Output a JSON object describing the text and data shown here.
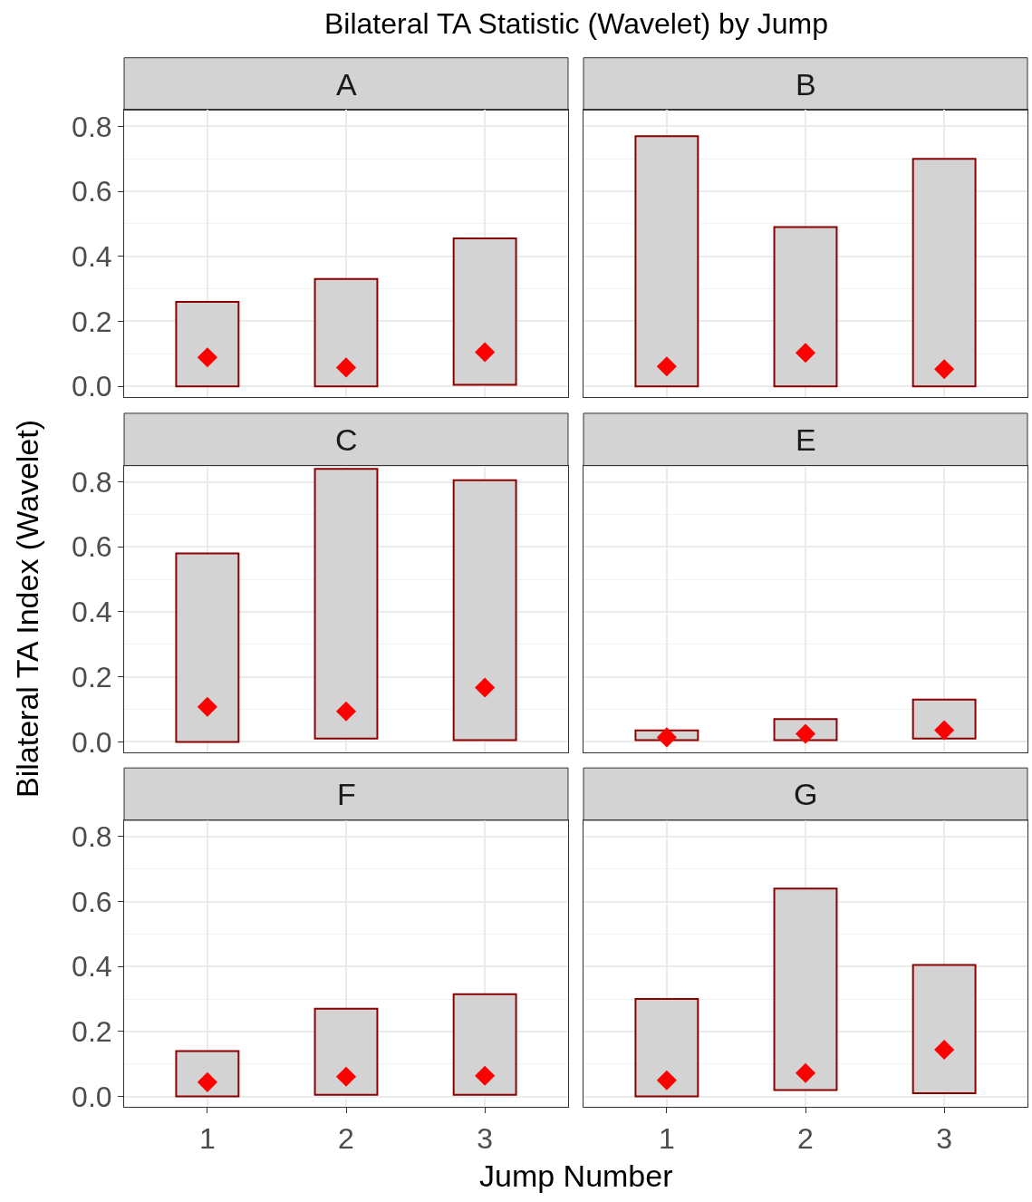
{
  "chart_data": [
    {
      "type": "bar",
      "title": "A",
      "annotations": [
        "Bilateral TA Statistic (Wavelet) by Jump"
      ],
      "categories": [
        "1",
        "2",
        "3"
      ],
      "series": [
        {
          "color": "#d3d3d3",
          "base": [
            0.0,
            0.0,
            0.005
          ],
          "values": [
            0.26,
            0.33,
            0.45
          ]
        },
        {
          "type": "scatter",
          "color": "#ff0000",
          "values": [
            0.089,
            0.058,
            0.105
          ]
        }
      ],
      "ylim": [
        -0.033,
        0.85
      ],
      "yticks": [
        {
          "value": 0,
          "label": "0.0"
        },
        {
          "value": 0.2,
          "label": "0.2"
        },
        {
          "value": 0.4,
          "label": "0.4"
        },
        {
          "value": 0.6,
          "label": "0.6"
        },
        {
          "value": 0.8,
          "label": "0.8"
        }
      ],
      "grid": true,
      "marker": "diamond",
      "tick_labels": "y"
    },
    {
      "type": "bar",
      "title": "B",
      "categories": [
        "1",
        "2",
        "3"
      ],
      "series": [
        {
          "color": "#d3d3d3",
          "base": [
            0.0,
            0.0,
            0.0
          ],
          "values": [
            0.77,
            0.49,
            0.7
          ]
        },
        {
          "type": "scatter",
          "color": "#ff0000",
          "values": [
            0.061,
            0.103,
            0.053
          ]
        }
      ],
      "ylim": [
        -0.033,
        0.85
      ],
      "yticks": [
        0,
        0.2,
        0.4,
        0.6,
        0.8
      ],
      "grid": true,
      "marker": "diamond",
      "tick_labels": false
    },
    {
      "type": "bar",
      "title": "C",
      "ylabel": "Bilateral TA Index (Wavelet)",
      "categories": [
        "1",
        "2",
        "3"
      ],
      "series": [
        {
          "color": "#d3d3d3",
          "base": [
            0.0,
            0.01,
            0.005
          ],
          "values": [
            0.58,
            0.83,
            0.8
          ]
        },
        {
          "type": "scatter",
          "color": "#ff0000",
          "values": [
            0.108,
            0.094,
            0.167
          ]
        }
      ],
      "ylim": [
        -0.033,
        0.85
      ],
      "yticks": [
        {
          "value": 0,
          "label": "0.0"
        },
        {
          "value": 0.2,
          "label": "0.2"
        },
        {
          "value": 0.4,
          "label": "0.4"
        },
        {
          "value": 0.6,
          "label": "0.6"
        },
        {
          "value": 0.8,
          "label": "0.8"
        }
      ],
      "grid": true,
      "marker": "diamond",
      "tick_labels": "y"
    },
    {
      "type": "bar",
      "title": "E",
      "categories": [
        "1",
        "2",
        "3"
      ],
      "series": [
        {
          "color": "#d3d3d3",
          "base": [
            0.005,
            0.005,
            0.01
          ],
          "values": [
            0.03,
            0.065,
            0.12
          ]
        },
        {
          "type": "scatter",
          "color": "#ff0000",
          "values": [
            0.014,
            0.025,
            0.036
          ]
        }
      ],
      "ylim": [
        -0.033,
        0.85
      ],
      "yticks": [
        0,
        0.2,
        0.4,
        0.6,
        0.8
      ],
      "grid": true,
      "marker": "diamond",
      "tick_labels": false
    },
    {
      "type": "bar",
      "title": "F",
      "xlabel": "Jump Number",
      "categories": [
        "1",
        "2",
        "3"
      ],
      "series": [
        {
          "color": "#d3d3d3",
          "base": [
            0.0,
            0.005,
            0.005
          ],
          "values": [
            0.14,
            0.265,
            0.31
          ]
        },
        {
          "type": "scatter",
          "color": "#ff0000",
          "values": [
            0.044,
            0.061,
            0.064
          ]
        }
      ],
      "ylim": [
        -0.033,
        0.85
      ],
      "yticks": [
        {
          "value": 0,
          "label": "0.0"
        },
        {
          "value": 0.2,
          "label": "0.2"
        },
        {
          "value": 0.4,
          "label": "0.4"
        },
        {
          "value": 0.6,
          "label": "0.6"
        },
        {
          "value": 0.8,
          "label": "0.8"
        }
      ],
      "grid": true,
      "marker": "diamond"
    },
    {
      "type": "bar",
      "title": "G",
      "categories": [
        "1",
        "2",
        "3"
      ],
      "series": [
        {
          "color": "#d3d3d3",
          "base": [
            0.0,
            0.02,
            0.01
          ],
          "values": [
            0.3,
            0.62,
            0.395
          ]
        },
        {
          "type": "scatter",
          "color": "#ff0000",
          "values": [
            0.05,
            0.072,
            0.144
          ]
        }
      ],
      "ylim": [
        -0.033,
        0.85
      ],
      "yticks": [
        0,
        0.2,
        0.4,
        0.6,
        0.8
      ],
      "grid": true,
      "marker": "diamond",
      "tick_labels": "x"
    }
  ]
}
